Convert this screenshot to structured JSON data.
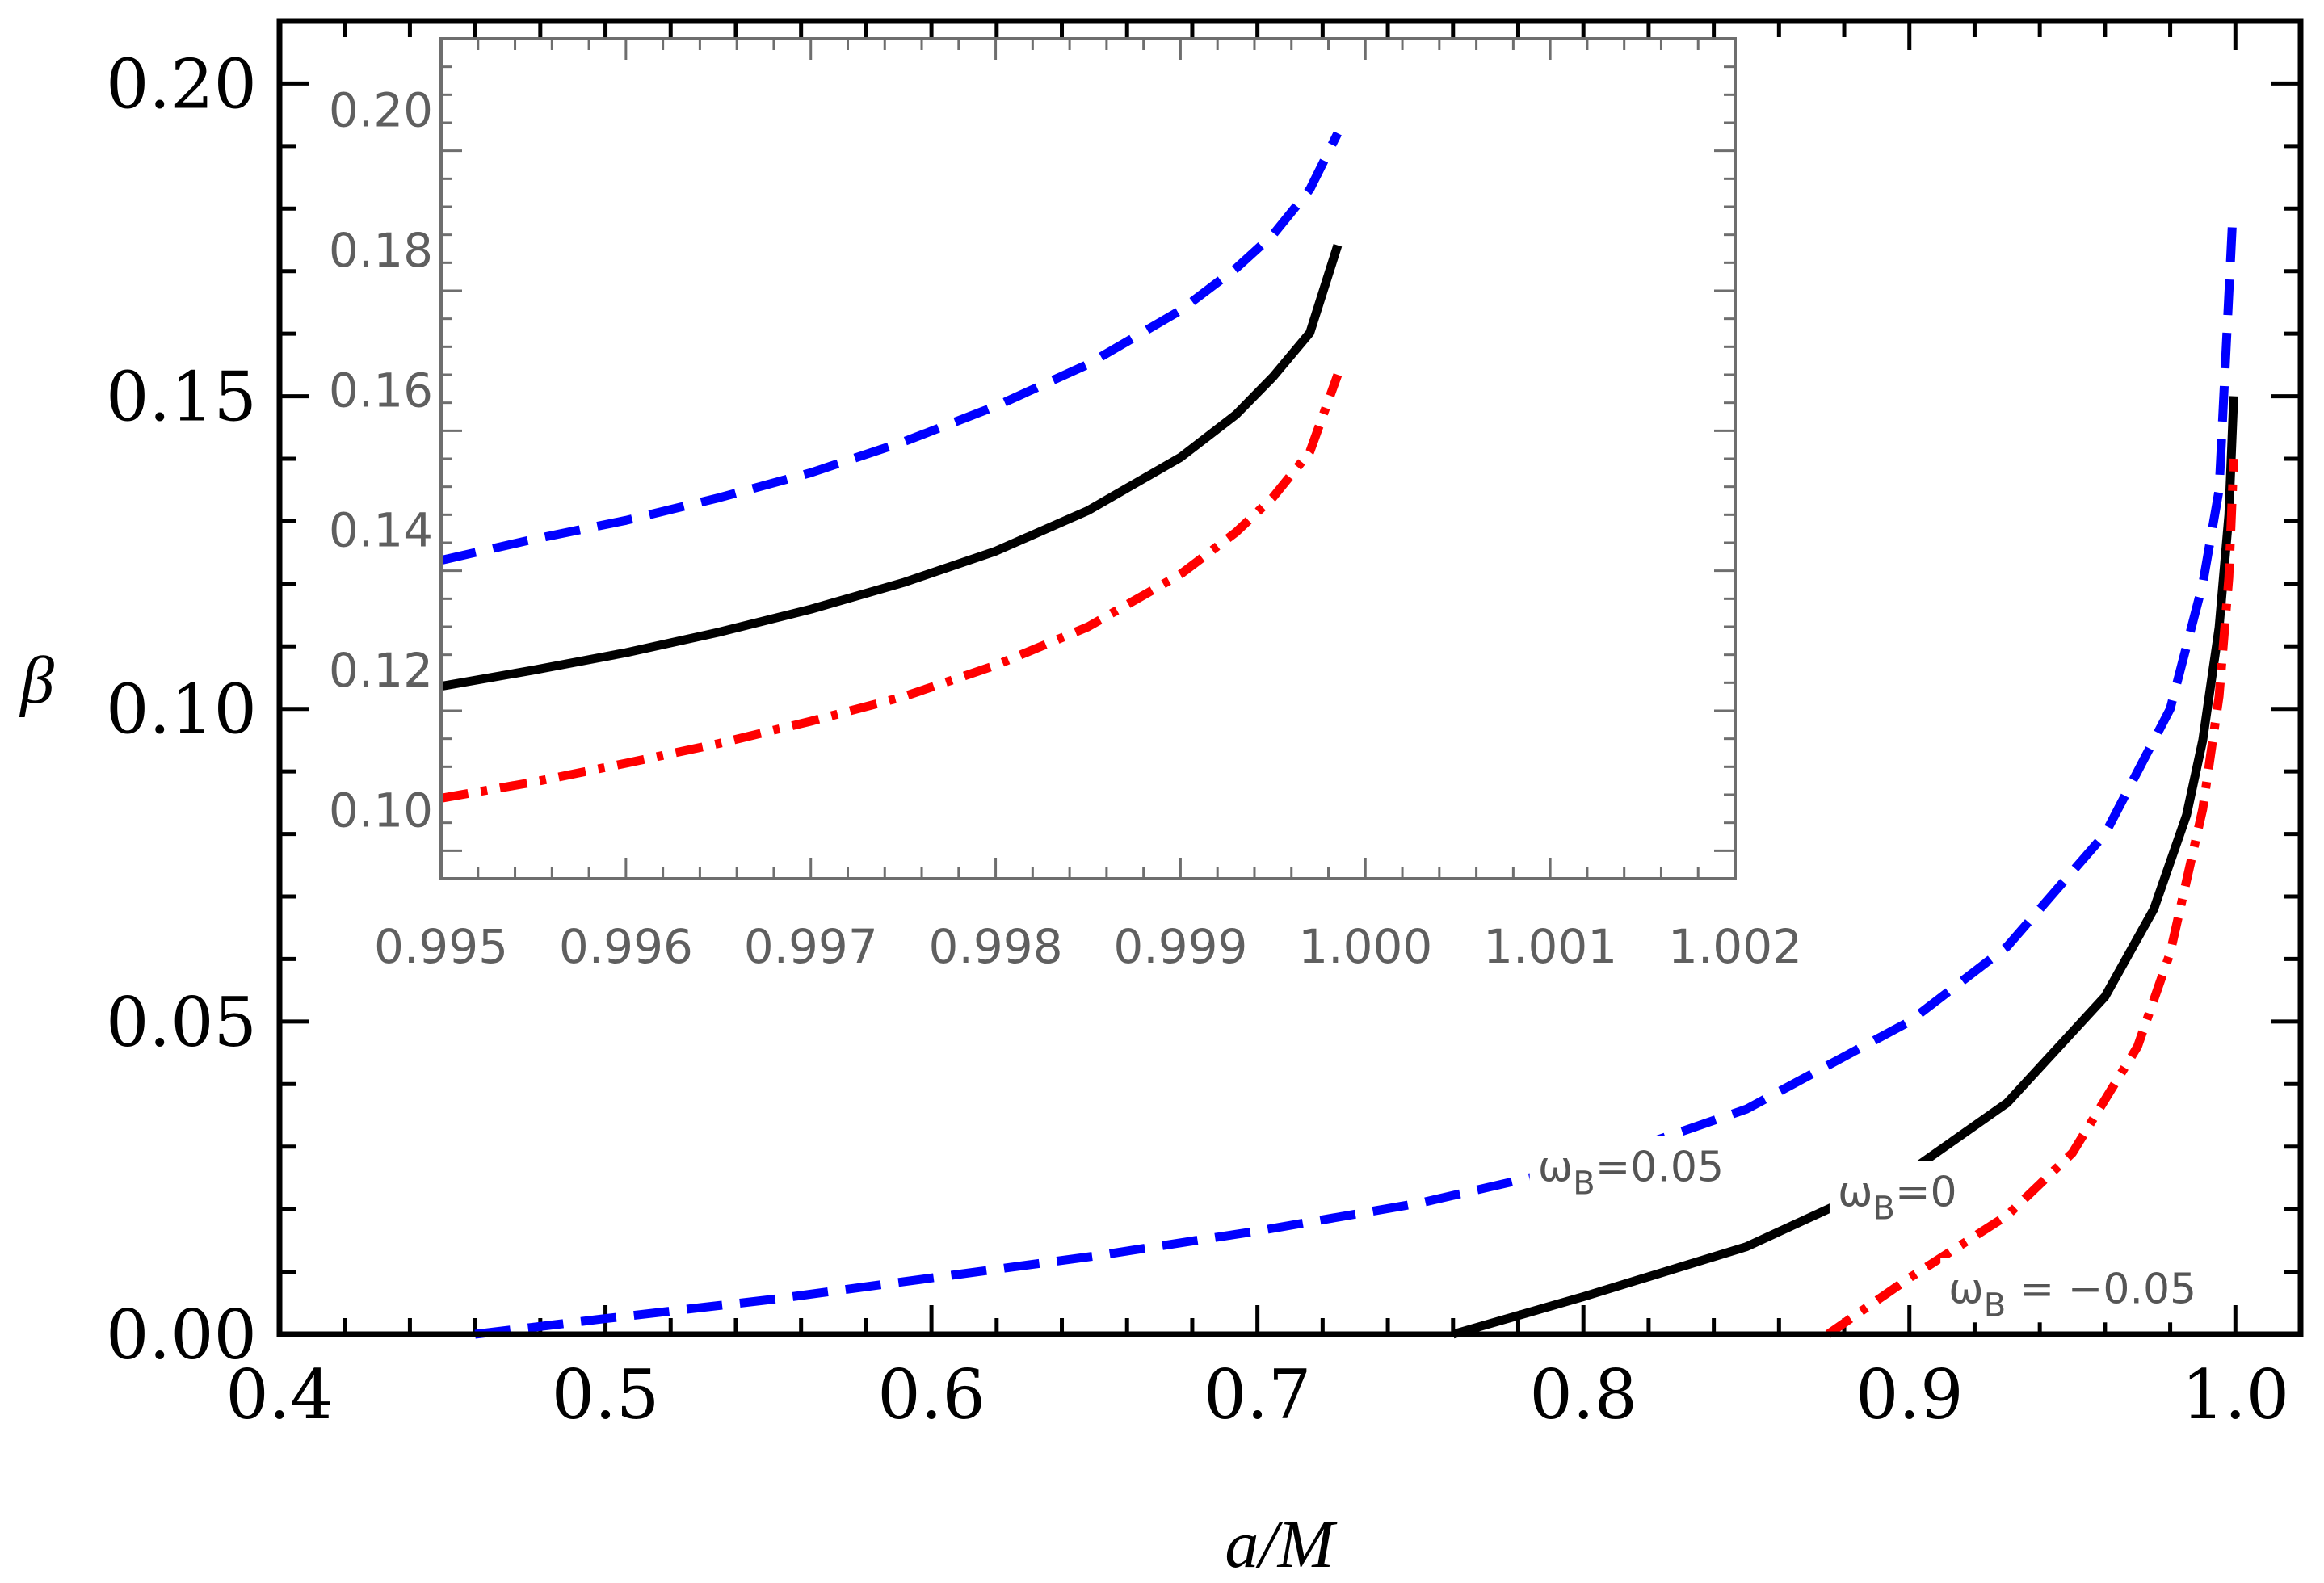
{
  "chart_data": [
    {
      "id": "main",
      "type": "line",
      "xlabel": "a/M",
      "ylabel": "β",
      "xlim": [
        0.4,
        1.02
      ],
      "ylim": [
        0.0,
        0.21
      ],
      "xticks": [
        0.4,
        0.5,
        0.6,
        0.7,
        0.8,
        0.9,
        1.0
      ],
      "xtick_labels": [
        "0.4",
        "0.5",
        "0.6",
        "0.7",
        "0.8",
        "0.9",
        "1.0"
      ],
      "yticks": [
        0.0,
        0.05,
        0.1,
        0.15,
        0.2
      ],
      "ytick_labels": [
        "0.00",
        "0.05",
        "0.10",
        "0.15",
        "0.20"
      ],
      "series": [
        {
          "name": "ωB=0.05",
          "color": "#0000ff",
          "style": "dashed",
          "x": [
            0.46,
            0.5,
            0.55,
            0.6,
            0.65,
            0.7,
            0.75,
            0.8,
            0.85,
            0.9,
            0.93,
            0.96,
            0.98,
            0.99,
            0.995,
            0.999
          ],
          "y": [
            0.0,
            0.0025,
            0.0055,
            0.009,
            0.0125,
            0.0165,
            0.021,
            0.027,
            0.036,
            0.05,
            0.062,
            0.08,
            0.1,
            0.12,
            0.135,
            0.177
          ]
        },
        {
          "name": "ωB=0",
          "color": "#000000",
          "style": "solid",
          "x": [
            0.76,
            0.8,
            0.85,
            0.9,
            0.93,
            0.96,
            0.975,
            0.985,
            0.99,
            0.995,
            0.998,
            0.9995
          ],
          "y": [
            0.0,
            0.006,
            0.014,
            0.026,
            0.037,
            0.054,
            0.068,
            0.083,
            0.095,
            0.113,
            0.131,
            0.15
          ]
        },
        {
          "name": "ωB=−0.05",
          "color": "#ff0000",
          "style": "dashdot",
          "x": [
            0.875,
            0.9,
            0.93,
            0.95,
            0.97,
            0.98,
            0.99,
            0.995,
            0.998,
            0.9995
          ],
          "y": [
            0.0,
            0.009,
            0.019,
            0.029,
            0.046,
            0.061,
            0.084,
            0.102,
            0.121,
            0.14
          ]
        }
      ],
      "annotations": [
        {
          "series": "ωB=0.05",
          "text_main": "ω",
          "text_sub": "B",
          "text_rest": "=0.05",
          "x": 0.786,
          "y": 0.0245
        },
        {
          "series": "ωB=0",
          "text_main": "ω",
          "text_sub": "B",
          "text_rest": "=0",
          "x": 0.878,
          "y": 0.0205
        },
        {
          "series": "ωB=−0.05",
          "text_main": "ω",
          "text_sub": "B",
          "text_rest": " = −0.05",
          "x": 0.912,
          "y": 0.005
        }
      ]
    },
    {
      "id": "inset",
      "type": "line",
      "xlim": [
        0.995,
        1.002
      ],
      "ylim": [
        0.09,
        0.21
      ],
      "xticks": [
        0.995,
        0.996,
        0.997,
        0.998,
        0.999,
        1.0,
        1.001,
        1.002
      ],
      "xtick_labels": [
        "0.995",
        "0.996",
        "0.997",
        "0.998",
        "0.999",
        "1.000",
        "1.001",
        "1.002"
      ],
      "yticks": [
        0.1,
        0.12,
        0.14,
        0.16,
        0.18,
        0.2
      ],
      "ytick_labels": [
        "0.10",
        "0.12",
        "0.14",
        "0.16",
        "0.18",
        "0.20"
      ],
      "series": [
        {
          "name": "ωB=0.05",
          "color": "#0000ff",
          "style": "dashed",
          "x": [
            0.995,
            0.9955,
            0.996,
            0.9965,
            0.997,
            0.9975,
            0.998,
            0.9985,
            0.999,
            0.9993,
            0.9995,
            0.9997,
            0.99985
          ],
          "y": [
            0.1355,
            0.1385,
            0.1412,
            0.1444,
            0.148,
            0.1524,
            0.1575,
            0.1635,
            0.1712,
            0.1772,
            0.182,
            0.1885,
            0.1965
          ]
        },
        {
          "name": "ωB=0",
          "color": "#000000",
          "style": "solid",
          "x": [
            0.995,
            0.9955,
            0.996,
            0.9965,
            0.997,
            0.9975,
            0.998,
            0.9985,
            0.999,
            0.9993,
            0.9995,
            0.9997,
            0.99985
          ],
          "y": [
            0.1175,
            0.1198,
            0.1223,
            0.1252,
            0.1285,
            0.1323,
            0.1368,
            0.1426,
            0.1502,
            0.1563,
            0.1617,
            0.168,
            0.1805
          ]
        },
        {
          "name": "ωB=−0.05",
          "color": "#ff0000",
          "style": "dashdot",
          "x": [
            0.995,
            0.9955,
            0.996,
            0.9965,
            0.997,
            0.9975,
            0.998,
            0.9985,
            0.999,
            0.9993,
            0.9995,
            0.9997,
            0.99985
          ],
          "y": [
            0.1015,
            0.1038,
            0.1065,
            0.1093,
            0.1125,
            0.116,
            0.1205,
            0.126,
            0.1335,
            0.1395,
            0.1445,
            0.151,
            0.162
          ]
        }
      ]
    }
  ]
}
